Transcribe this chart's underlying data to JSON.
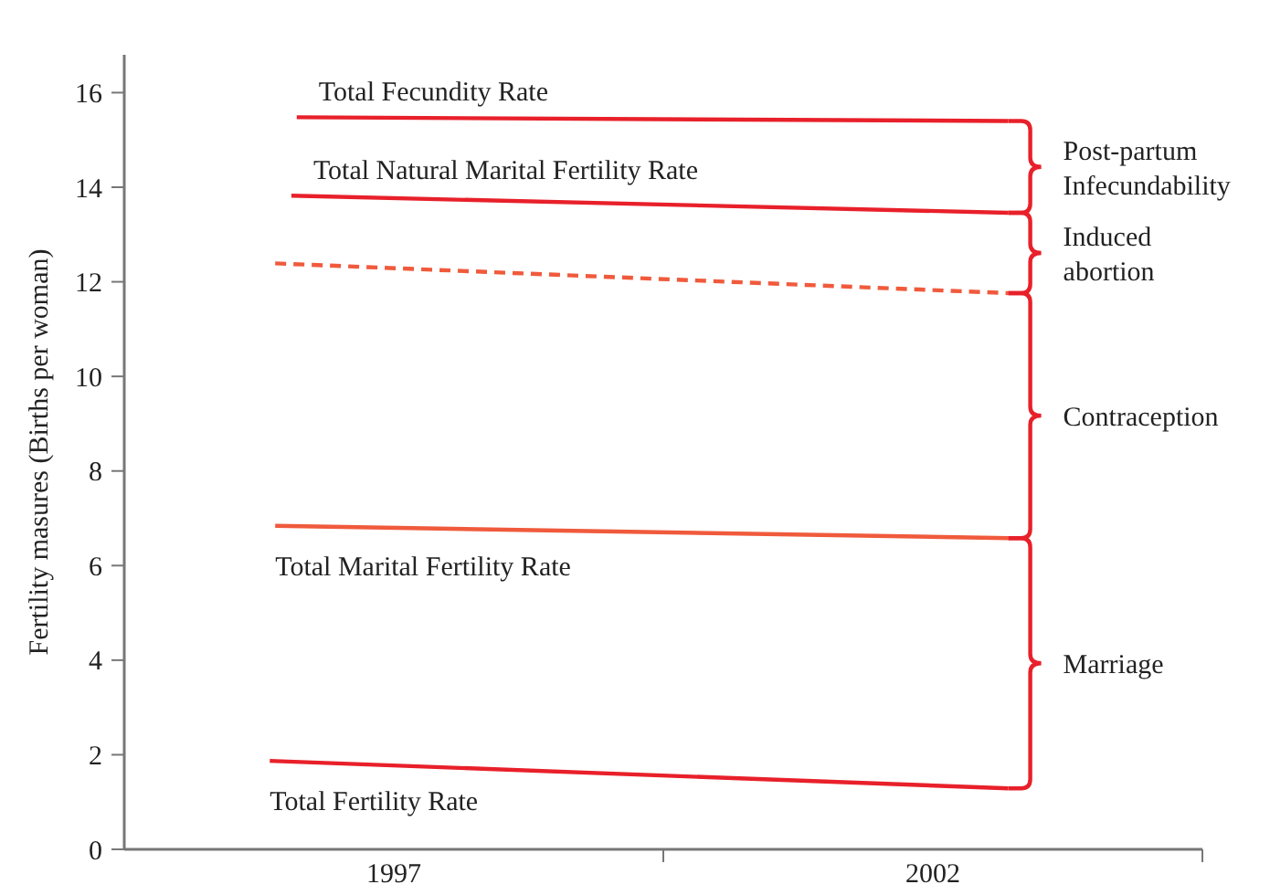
{
  "chart_data": {
    "type": "line",
    "ylabel": "Fertility masures (Births per woman)",
    "xlim": [
      1994.5,
      2004.5
    ],
    "xticks": [
      {
        "value": 1997,
        "label": "1997"
      },
      {
        "value": 1999.5,
        "label": null
      },
      {
        "value": 2002,
        "label": "2002"
      },
      {
        "value": 2004.5,
        "label": null
      }
    ],
    "ylim": [
      0,
      16.8
    ],
    "yticks": [
      0,
      2,
      4,
      6,
      8,
      10,
      12,
      14,
      16
    ],
    "grid": false,
    "series": [
      {
        "name": "Total Fecundity Rate",
        "color": "#e8202a",
        "x": [
          1996.1,
          2002.7
        ],
        "values": [
          15.48,
          15.4
        ]
      },
      {
        "name": "Total Natural Marital Fertility Rate",
        "color": "#e8202a",
        "x": [
          1996.05,
          2002.7
        ],
        "values": [
          13.82,
          13.46
        ]
      },
      {
        "color": "#f05a3c",
        "line_style": "dashed",
        "x": [
          1995.9,
          2002.7
        ],
        "values": [
          12.39,
          11.76
        ]
      },
      {
        "name": "Total Marital Fertility Rate",
        "color": "#f05a3c",
        "x": [
          1995.9,
          2002.7
        ],
        "values": [
          6.84,
          6.58
        ]
      },
      {
        "name": "Total Fertility Rate",
        "color": "#e8202a",
        "x": [
          1995.85,
          2002.7
        ],
        "values": [
          1.87,
          1.29
        ]
      }
    ],
    "annotations": [
      "Post-partum Infecundability",
      "Induced abortion",
      "Contraception",
      "Marriage"
    ]
  }
}
